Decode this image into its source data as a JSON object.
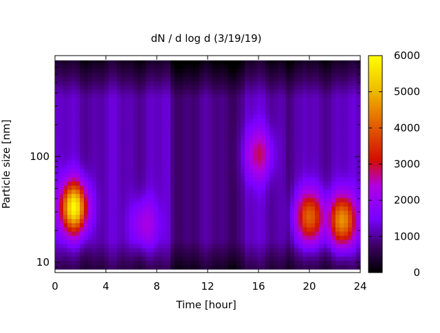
{
  "chart_data": {
    "type": "heatmap",
    "title": "dN / d log d (3/19/19)",
    "xlabel": "Time [hour]",
    "ylabel": "Particle size [nm]",
    "x_range": [
      0,
      24
    ],
    "x_ticks": [
      "0",
      "4",
      "8",
      "12",
      "16",
      "20",
      "24"
    ],
    "y_scale": "log",
    "y_range": [
      8,
      900
    ],
    "y_ticks": [
      {
        "value": 10,
        "label": "10"
      },
      {
        "value": 100,
        "label": "100"
      }
    ],
    "colorbar": {
      "range": [
        0,
        6000
      ],
      "ticks": [
        "0",
        "1000",
        "2000",
        "3000",
        "4000",
        "5000",
        "6000"
      ],
      "colormap": [
        "#000000",
        "#3a0060",
        "#7a00ff",
        "#b000e0",
        "#d01000",
        "#e06000",
        "#f0c000",
        "#ffff00"
      ]
    },
    "background_level": 1150,
    "features": [
      {
        "time_hour": 1.5,
        "size_nm": 33,
        "peak": 5800
      },
      {
        "time_hour": 16.0,
        "size_nm": 105,
        "peak": 2700
      },
      {
        "time_hour": 20.0,
        "size_nm": 27,
        "peak": 4100
      },
      {
        "time_hour": 22.6,
        "size_nm": 25,
        "peak": 4600
      },
      {
        "time_hour": 7.0,
        "size_nm": 23,
        "peak": 2300
      }
    ],
    "grid": false,
    "legend": "colorbar-right"
  }
}
